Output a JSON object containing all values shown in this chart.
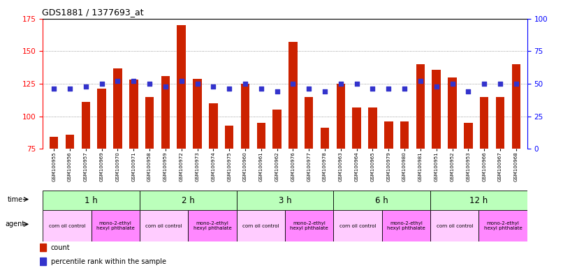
{
  "title": "GDS1881 / 1377693_at",
  "samples": [
    "GSM100955",
    "GSM100956",
    "GSM100957",
    "GSM100969",
    "GSM100970",
    "GSM100971",
    "GSM100958",
    "GSM100959",
    "GSM100972",
    "GSM100973",
    "GSM100974",
    "GSM100975",
    "GSM100960",
    "GSM100961",
    "GSM100962",
    "GSM100976",
    "GSM100977",
    "GSM100978",
    "GSM100963",
    "GSM100964",
    "GSM100965",
    "GSM100979",
    "GSM100980",
    "GSM100981",
    "GSM100951",
    "GSM100952",
    "GSM100953",
    "GSM100966",
    "GSM100967",
    "GSM100968"
  ],
  "counts": [
    84,
    86,
    111,
    121,
    137,
    128,
    115,
    131,
    170,
    129,
    110,
    93,
    125,
    95,
    105,
    157,
    115,
    91,
    125,
    107,
    107,
    96,
    96,
    140,
    136,
    130,
    95,
    115,
    115,
    140
  ],
  "percentiles": [
    46,
    46,
    48,
    50,
    52,
    52,
    50,
    48,
    52,
    50,
    48,
    46,
    50,
    46,
    44,
    50,
    46,
    44,
    50,
    50,
    46,
    46,
    46,
    52,
    48,
    50,
    44,
    50,
    50,
    50
  ],
  "bar_color": "#cc2200",
  "dot_color": "#3333cc",
  "ylim_left": [
    75,
    175
  ],
  "ylim_right": [
    0,
    100
  ],
  "yticks_left": [
    75,
    100,
    125,
    150,
    175
  ],
  "yticks_right": [
    0,
    25,
    50,
    75,
    100
  ],
  "time_groups": [
    {
      "label": "1 h",
      "start": 0,
      "end": 6
    },
    {
      "label": "2 h",
      "start": 6,
      "end": 12
    },
    {
      "label": "3 h",
      "start": 12,
      "end": 18
    },
    {
      "label": "6 h",
      "start": 18,
      "end": 24
    },
    {
      "label": "12 h",
      "start": 24,
      "end": 30
    }
  ],
  "agent_groups": [
    {
      "label": "corn oil control",
      "start": 0,
      "end": 3
    },
    {
      "label": "mono-2-ethyl\nhexyl phthalate",
      "start": 3,
      "end": 6
    },
    {
      "label": "corn oil control",
      "start": 6,
      "end": 9
    },
    {
      "label": "mono-2-ethyl\nhexyl phthalate",
      "start": 9,
      "end": 12
    },
    {
      "label": "corn oil control",
      "start": 12,
      "end": 15
    },
    {
      "label": "mono-2-ethyl\nhexyl phthalate",
      "start": 15,
      "end": 18
    },
    {
      "label": "corn oil control",
      "start": 18,
      "end": 21
    },
    {
      "label": "mono-2-ethyl\nhexyl phthalate",
      "start": 21,
      "end": 24
    },
    {
      "label": "corn oil control",
      "start": 24,
      "end": 27
    },
    {
      "label": "mono-2-ethyl\nhexyl phthalate",
      "start": 27,
      "end": 30
    }
  ],
  "time_color": "#bbffbb",
  "corn_color": "#ffccff",
  "mono_color": "#ff88ff",
  "legend_items": [
    {
      "label": "count",
      "color": "#cc2200"
    },
    {
      "label": "percentile rank within the sample",
      "color": "#3333cc"
    }
  ]
}
